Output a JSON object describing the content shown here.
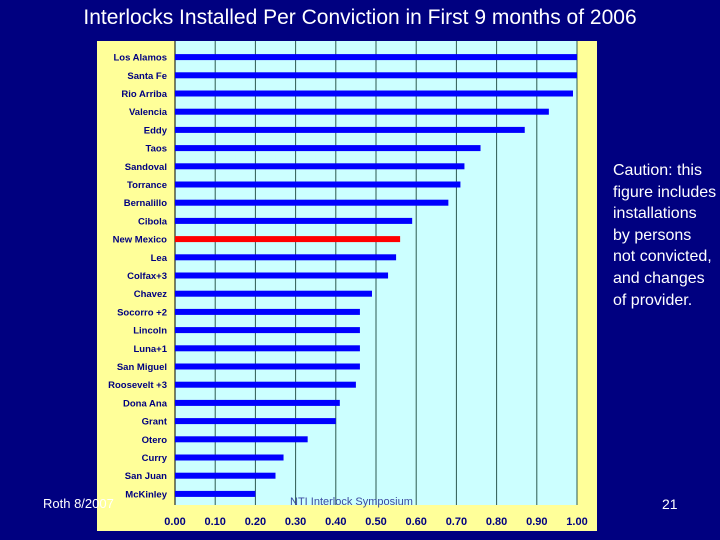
{
  "slide": {
    "title": "Interlocks Installed Per Conviction in First 9 months of 2006",
    "caution": "Caution: this figure includes installations by persons not convicted, and changes of provider.",
    "footer_left": "Roth 8/2007",
    "footer_mid": "NTI Interlock Symposium",
    "page_number": "21"
  },
  "colors": {
    "background": "#000080",
    "chart_area": "#ffff99",
    "plot_area": "#ccffff",
    "bar": "#0000ff",
    "highlight_bar": "#ff0000",
    "gridline": "#2d5a50"
  },
  "chart_data": {
    "type": "bar",
    "orientation": "horizontal",
    "title": "Interlocks Installed Per Conviction in First 9 months of 2006",
    "xlabel": "",
    "ylabel": "",
    "xlim": [
      0,
      1
    ],
    "grid": true,
    "x_ticks": [
      "0.00",
      "0.10",
      "0.20",
      "0.30",
      "0.40",
      "0.50",
      "0.60",
      "0.70",
      "0.80",
      "0.90",
      "1.00"
    ],
    "highlight": "New Mexico",
    "categories": [
      "Los Alamos",
      "Santa Fe",
      "Rio Arriba",
      "Valencia",
      "Eddy",
      "Taos",
      "Sandoval",
      "Torrance",
      "Bernalillo",
      "Cibola",
      "New Mexico",
      "Lea",
      "Colfax+3",
      "Chavez",
      "Socorro +2",
      "Lincoln",
      "Luna+1",
      "San Miguel",
      "Roosevelt +3",
      "Dona Ana",
      "Grant",
      "Otero",
      "Curry",
      "San Juan",
      "McKinley"
    ],
    "values": [
      1.0,
      1.0,
      0.99,
      0.93,
      0.87,
      0.76,
      0.72,
      0.71,
      0.68,
      0.59,
      0.56,
      0.55,
      0.53,
      0.49,
      0.46,
      0.46,
      0.46,
      0.46,
      0.45,
      0.41,
      0.4,
      0.33,
      0.27,
      0.25,
      0.2
    ]
  }
}
